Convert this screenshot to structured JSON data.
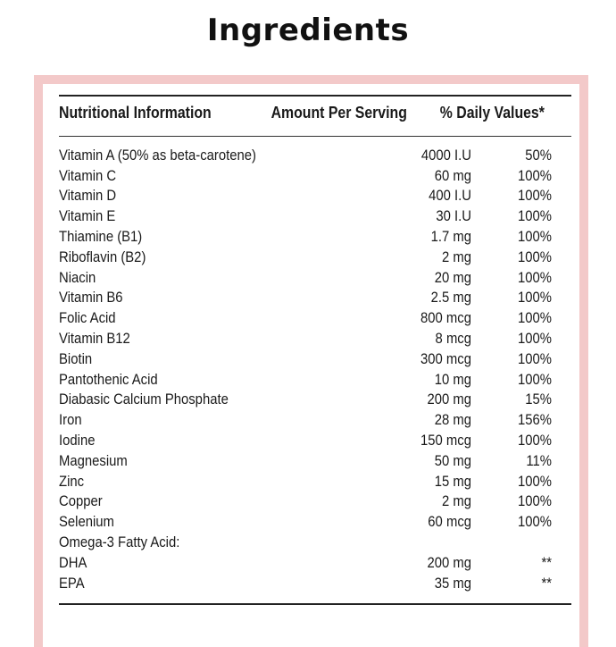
{
  "page": {
    "title": "Ingredients"
  },
  "table": {
    "headers": {
      "name": "Nutritional Information",
      "amount": "Amount Per Serving",
      "daily": "% Daily Values*"
    },
    "rows": [
      {
        "name": "Vitamin A (50% as beta-carotene)",
        "amount": "4000 I.U",
        "daily": "50%"
      },
      {
        "name": "Vitamin C",
        "amount": "60 mg",
        "daily": "100%"
      },
      {
        "name": "Vitamin D",
        "amount": "400 I.U",
        "daily": "100%"
      },
      {
        "name": "Vitamin E",
        "amount": "30 I.U",
        "daily": "100%"
      },
      {
        "name": "Thiamine (B1)",
        "amount": "1.7 mg",
        "daily": "100%"
      },
      {
        "name": "Riboflavin (B2)",
        "amount": "2 mg",
        "daily": "100%"
      },
      {
        "name": "Niacin",
        "amount": "20 mg",
        "daily": "100%"
      },
      {
        "name": "Vitamin B6",
        "amount": "2.5 mg",
        "daily": "100%"
      },
      {
        "name": "Folic Acid",
        "amount": "800 mcg",
        "daily": "100%"
      },
      {
        "name": "Vitamin B12",
        "amount": "8 mcg",
        "daily": "100%"
      },
      {
        "name": "Biotin",
        "amount": "300 mcg",
        "daily": "100%"
      },
      {
        "name": "Pantothenic Acid",
        "amount": "10 mg",
        "daily": "100%"
      },
      {
        "name": "Diabasic Calcium Phosphate",
        "amount": "200 mg",
        "daily": "15%"
      },
      {
        "name": "Iron",
        "amount": "28 mg",
        "daily": "156%"
      },
      {
        "name": "Iodine",
        "amount": "150 mcg",
        "daily": "100%"
      },
      {
        "name": "Magnesium",
        "amount": "50 mg",
        "daily": "11%"
      },
      {
        "name": "Zinc",
        "amount": "15 mg",
        "daily": "100%"
      },
      {
        "name": "Copper",
        "amount": "2 mg",
        "daily": "100%"
      },
      {
        "name": "Selenium",
        "amount": "60 mcg",
        "daily": "100%"
      },
      {
        "name": "Omega-3 Fatty Acid:",
        "amount": "",
        "daily": ""
      },
      {
        "name": "DHA",
        "amount": "200 mg",
        "daily": "**"
      },
      {
        "name": "EPA",
        "amount": "35 mg",
        "daily": "**"
      }
    ]
  },
  "colors": {
    "frame": "#f3c9c9",
    "text": "#1a1a1a",
    "rule": "#222222"
  }
}
